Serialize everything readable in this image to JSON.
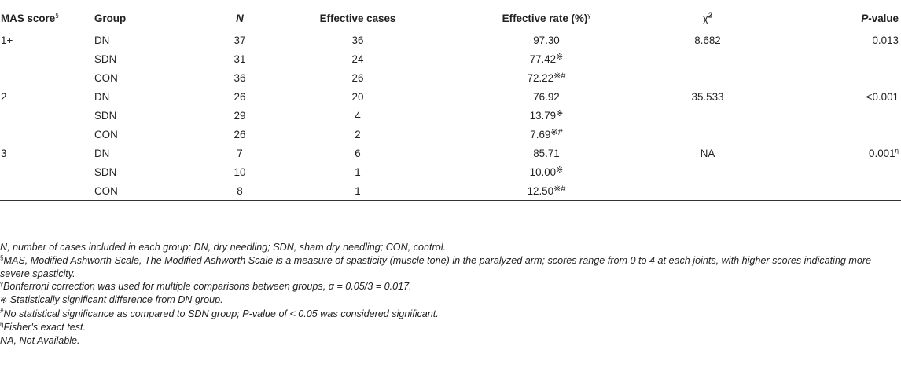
{
  "headers": {
    "mas": "MAS score",
    "mas_sym": "§",
    "group": "Group",
    "n": "N",
    "effective_cases": "Effective cases",
    "effective_rate": "Effective rate (%)",
    "rate_sym": "γ",
    "chi": "χ",
    "chi_sup": "2",
    "p": "P",
    "p_rest": "-value"
  },
  "rows": [
    {
      "score": "1+",
      "group": "DN",
      "n": "37",
      "cases": "36",
      "rate": "97.30",
      "rate_sym": "",
      "chi": "8.682",
      "p": "0.013",
      "p_sym": ""
    },
    {
      "score": "",
      "group": "SDN",
      "n": "31",
      "cases": "24",
      "rate": "77.42",
      "rate_sym": "※",
      "chi": "",
      "p": "",
      "p_sym": ""
    },
    {
      "score": "",
      "group": "CON",
      "n": "36",
      "cases": "26",
      "rate": "72.22",
      "rate_sym": "※#",
      "chi": "",
      "p": "",
      "p_sym": ""
    },
    {
      "score": "2",
      "group": "DN",
      "n": "26",
      "cases": "20",
      "rate": "76.92",
      "rate_sym": "",
      "chi": "35.533",
      "p": "<0.001",
      "p_sym": ""
    },
    {
      "score": "",
      "group": "SDN",
      "n": "29",
      "cases": "4",
      "rate": "13.79",
      "rate_sym": "※",
      "chi": "",
      "p": "",
      "p_sym": ""
    },
    {
      "score": "",
      "group": "CON",
      "n": "26",
      "cases": "2",
      "rate": "7.69",
      "rate_sym": "※#",
      "chi": "",
      "p": "",
      "p_sym": ""
    },
    {
      "score": "3",
      "group": "DN",
      "n": "7",
      "cases": "6",
      "rate": "85.71",
      "rate_sym": "",
      "chi": "NA",
      "p": "0.001",
      "p_sym": "η"
    },
    {
      "score": "",
      "group": "SDN",
      "n": "10",
      "cases": "1",
      "rate": "10.00",
      "rate_sym": "※",
      "chi": "",
      "p": "",
      "p_sym": ""
    },
    {
      "score": "",
      "group": "CON",
      "n": "8",
      "cases": "1",
      "rate": "12.50",
      "rate_sym": "※#",
      "chi": "",
      "p": "",
      "p_sym": ""
    }
  ],
  "notes": {
    "n1": "N, number of cases included in each group; DN, dry needling; SDN, sham dry needling; CON, control.",
    "n2_sym": "§",
    "n2": "MAS, Modified Ashworth Scale, The Modified Ashworth Scale is a measure of spasticity (muscle tone) in the paralyzed arm; scores range from 0 to 4 at each joints, with higher scores indicating more severe spasticity.",
    "n3_sym": "γ",
    "n3": "Bonferroni correction was used for multiple comparisons between groups, α = 0.05/3 = 0.017.",
    "n4_sym": "※",
    "n4": " Statistically significant difference from DN group.",
    "n5_sym": "#",
    "n5": "No statistical significance as compared to SDN group; P-value of < 0.05 was considered significant.",
    "n6_sym": "η",
    "n6": "Fisher's exact test.",
    "n7": "NA, Not Available."
  }
}
